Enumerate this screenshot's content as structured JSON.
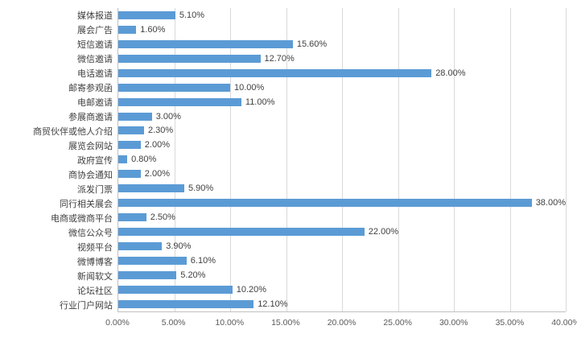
{
  "chart_data": {
    "type": "bar",
    "orientation": "horizontal",
    "title": "",
    "xlabel": "",
    "ylabel": "",
    "xlim": [
      0,
      40
    ],
    "grid": true,
    "legend": "none",
    "bar_color": "#5b9bd5",
    "categories": [
      "媒体报道",
      "展会广告",
      "短信邀请",
      "微信邀请",
      "电话邀请",
      "邮寄参观函",
      "电邮邀请",
      "参展商邀请",
      "商贸伙伴或他人介绍",
      "展览会网站",
      "政府宣传",
      "商协会通知",
      "派发门票",
      "同行相关展会",
      "电商或微商平台",
      "微信公众号",
      "视频平台",
      "微博博客",
      "新闻软文",
      "论坛社区",
      "行业门户网站"
    ],
    "values": [
      5.1,
      1.6,
      15.6,
      12.7,
      28.0,
      10.0,
      11.0,
      3.0,
      2.3,
      2.0,
      0.8,
      2.0,
      5.9,
      38.0,
      2.5,
      22.0,
      3.9,
      6.1,
      5.2,
      10.2,
      12.1
    ],
    "value_labels": [
      "5.10%",
      "1.60%",
      "15.60%",
      "12.70%",
      "28.00%",
      "10.00%",
      "11.00%",
      "3.00%",
      "2.30%",
      "2.00%",
      "0.80%",
      "2.00%",
      "5.90%",
      "38.00%",
      "2.50%",
      "22.00%",
      "3.90%",
      "6.10%",
      "5.20%",
      "10.20%",
      "12.10%"
    ],
    "x_tick_values": [
      0,
      5,
      10,
      15,
      20,
      25,
      30,
      35,
      40
    ],
    "x_tick_labels": [
      "0.00%",
      "5.00%",
      "10.00%",
      "15.00%",
      "20.00%",
      "25.00%",
      "30.00%",
      "35.00%",
      "40.00%"
    ]
  }
}
